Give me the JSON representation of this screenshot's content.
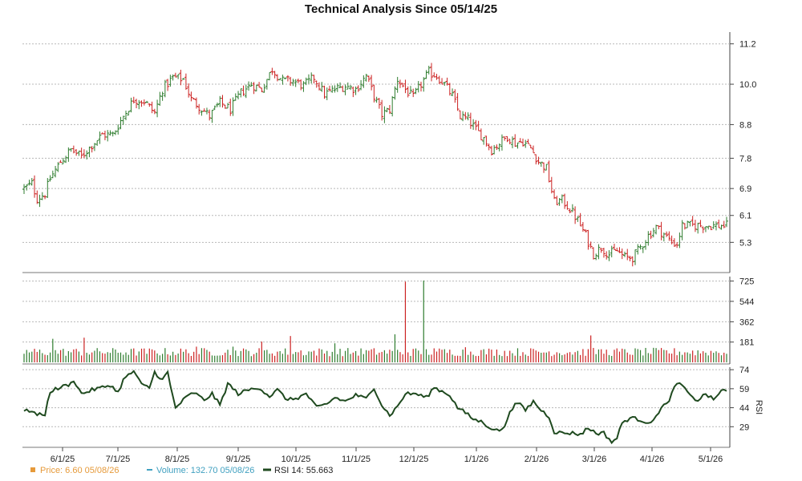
{
  "chart_data": {
    "type": "ohlc",
    "title": "Technical Analysis Since 05/14/25",
    "x_tick_labels": [
      "6/1/25",
      "7/1/25",
      "8/1/25",
      "9/1/25",
      "10/1/25",
      "11/1/25",
      "12/1/25",
      "1/1/26",
      "2/1/26",
      "3/1/26",
      "4/1/26",
      "5/1/26"
    ],
    "price_panel": {
      "ylim": [
        4.45,
        11.55
      ],
      "y_ticks": [
        "11.2",
        "10.0",
        "8.8",
        "7.8",
        "6.9",
        "6.1",
        "5.3"
      ],
      "up_color": "#2f7d2f",
      "down_color": "#cc2222",
      "anchors": [
        [
          0,
          6.9
        ],
        [
          3,
          7.05
        ],
        [
          5,
          6.6
        ],
        [
          8,
          6.75
        ],
        [
          10,
          7.2
        ],
        [
          14,
          7.7
        ],
        [
          18,
          8.05
        ],
        [
          22,
          7.85
        ],
        [
          26,
          8.2
        ],
        [
          30,
          8.5
        ],
        [
          34,
          8.5
        ],
        [
          38,
          9.05
        ],
        [
          42,
          9.55
        ],
        [
          46,
          9.5
        ],
        [
          50,
          9.15
        ],
        [
          53,
          9.85
        ],
        [
          57,
          10.2
        ],
        [
          61,
          10.15
        ],
        [
          64,
          9.55
        ],
        [
          67,
          9.35
        ],
        [
          71,
          9.05
        ],
        [
          75,
          9.45
        ],
        [
          79,
          9.25
        ],
        [
          83,
          9.75
        ],
        [
          87,
          10.0
        ],
        [
          91,
          9.85
        ],
        [
          95,
          10.45
        ],
        [
          99,
          10.1
        ],
        [
          103,
          10.1
        ],
        [
          107,
          9.95
        ],
        [
          111,
          10.2
        ],
        [
          115,
          9.7
        ],
        [
          119,
          9.85
        ],
        [
          123,
          9.95
        ],
        [
          127,
          9.85
        ],
        [
          131,
          10.25
        ],
        [
          134,
          9.65
        ],
        [
          137,
          9.1
        ],
        [
          140,
          9.25
        ],
        [
          143,
          10.15
        ],
        [
          146,
          9.85
        ],
        [
          149,
          9.6
        ],
        [
          152,
          10.0
        ],
        [
          155,
          10.35
        ],
        [
          158,
          10.25
        ],
        [
          161,
          10.0
        ],
        [
          164,
          9.65
        ],
        [
          167,
          9.05
        ],
        [
          170,
          8.95
        ],
        [
          173,
          8.65
        ],
        [
          176,
          8.4
        ],
        [
          179,
          8.05
        ],
        [
          182,
          8.25
        ],
        [
          185,
          8.45
        ],
        [
          188,
          8.25
        ],
        [
          191,
          8.3
        ],
        [
          194,
          8.1
        ],
        [
          197,
          7.7
        ],
        [
          200,
          7.5
        ],
        [
          203,
          6.5
        ],
        [
          206,
          6.55
        ],
        [
          209,
          6.3
        ],
        [
          212,
          5.95
        ],
        [
          215,
          5.5
        ],
        [
          218,
          4.95
        ],
        [
          221,
          5.15
        ],
        [
          224,
          4.95
        ],
        [
          227,
          5.05
        ],
        [
          230,
          4.85
        ],
        [
          233,
          4.85
        ],
        [
          236,
          5.15
        ],
        [
          239,
          5.5
        ],
        [
          242,
          5.75
        ],
        [
          245,
          5.55
        ],
        [
          248,
          5.3
        ],
        [
          250,
          5.25
        ],
        [
          252,
          5.8
        ]
      ]
    },
    "volume_panel": {
      "ylim": [
        0,
        765
      ],
      "y_ticks": [
        "725",
        "544",
        "362",
        "181"
      ],
      "spikes": [
        [
          11,
          210
        ],
        [
          23,
          220
        ],
        [
          66,
          140
        ],
        [
          80,
          140
        ],
        [
          91,
          185
        ],
        [
          102,
          235
        ],
        [
          119,
          170
        ],
        [
          142,
          250
        ],
        [
          146,
          720
        ],
        [
          153,
          730
        ],
        [
          157,
          125
        ],
        [
          169,
          135
        ],
        [
          217,
          240
        ],
        [
          220,
          115
        ]
      ],
      "base_level": 100
    },
    "rsi_panel": {
      "ylabel": "RSI",
      "ylim": [
        14,
        76
      ],
      "y_ticks": [
        "74",
        "59",
        "44",
        "29"
      ],
      "line_color": "#1f4a1f",
      "anchors": [
        [
          0,
          41
        ],
        [
          3,
          42
        ],
        [
          5,
          38
        ],
        [
          8,
          39
        ],
        [
          10,
          57
        ],
        [
          14,
          60
        ],
        [
          18,
          63
        ],
        [
          19,
          66
        ],
        [
          22,
          55
        ],
        [
          26,
          58
        ],
        [
          30,
          60
        ],
        [
          33,
          62
        ],
        [
          36,
          56
        ],
        [
          38,
          66
        ],
        [
          42,
          73
        ],
        [
          45,
          62
        ],
        [
          48,
          60
        ],
        [
          50,
          72
        ],
        [
          53,
          66
        ],
        [
          55,
          72
        ],
        [
          56,
          61
        ],
        [
          58,
          44
        ],
        [
          62,
          52
        ],
        [
          65,
          56
        ],
        [
          69,
          50
        ],
        [
          72,
          55
        ],
        [
          75,
          46
        ],
        [
          78,
          63
        ],
        [
          82,
          55
        ],
        [
          86,
          58
        ],
        [
          90,
          60
        ],
        [
          94,
          53
        ],
        [
          97,
          58
        ],
        [
          101,
          50
        ],
        [
          105,
          52
        ],
        [
          108,
          55
        ],
        [
          112,
          44
        ],
        [
          116,
          47
        ],
        [
          119,
          52
        ],
        [
          123,
          49
        ],
        [
          127,
          54
        ],
        [
          131,
          51
        ],
        [
          134,
          60
        ],
        [
          137,
          46
        ],
        [
          140,
          38
        ],
        [
          143,
          45
        ],
        [
          146,
          55
        ],
        [
          150,
          55
        ],
        [
          154,
          52
        ],
        [
          157,
          60
        ],
        [
          160,
          57
        ],
        [
          163,
          54
        ],
        [
          166,
          44
        ],
        [
          169,
          40
        ],
        [
          172,
          35
        ],
        [
          175,
          33
        ],
        [
          178,
          29
        ],
        [
          181,
          26
        ],
        [
          184,
          28
        ],
        [
          186,
          42
        ],
        [
          189,
          48
        ],
        [
          192,
          42
        ],
        [
          195,
          49
        ],
        [
          198,
          42
        ],
        [
          201,
          37
        ],
        [
          203,
          25
        ],
        [
          206,
          24
        ],
        [
          210,
          24
        ],
        [
          213,
          23
        ],
        [
          216,
          28
        ],
        [
          219,
          24
        ],
        [
          222,
          24
        ],
        [
          225,
          17
        ],
        [
          227,
          20
        ],
        [
          229,
          32
        ],
        [
          232,
          36
        ],
        [
          235,
          35
        ],
        [
          238,
          33
        ],
        [
          241,
          33
        ],
        [
          244,
          45
        ],
        [
          247,
          48
        ],
        [
          249,
          62
        ],
        [
          252,
          62
        ],
        [
          255,
          53
        ],
        [
          258,
          50
        ],
        [
          261,
          55
        ],
        [
          264,
          50
        ],
        [
          267,
          58
        ],
        [
          270,
          56
        ]
      ]
    },
    "legend": [
      {
        "label": "Price: 6.60  05/08/26",
        "color": "#e69a3a",
        "marker": "square"
      },
      {
        "label": "Volume: 132.70  05/08/26",
        "color": "#40a0c0",
        "marker": "dash"
      },
      {
        "label": "RSI 14: 55.663",
        "color": "#1f4a1f",
        "marker": "line"
      }
    ]
  }
}
